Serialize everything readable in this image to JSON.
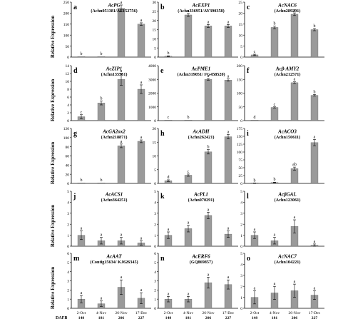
{
  "figure": {
    "y_axis_label": "Relative Expression",
    "x_categories": [
      "2-Oct",
      "4-Nov",
      "26-Nov",
      "17-Dec"
    ],
    "dafb_label": "DAFB",
    "dafb_values": [
      "148",
      "181",
      "206",
      "227"
    ]
  },
  "colors": {
    "bar": "#9a9a9a",
    "axis": "#000000",
    "text": "#000000"
  },
  "chart_data": [
    {
      "type": "bar",
      "letter": "a",
      "gene": "AcPG",
      "subtitle": "(Achn051381/AF152756)",
      "categories": [
        "2-Oct",
        "4-Nov",
        "26-Nov",
        "17-Dec"
      ],
      "values": [
        0,
        0,
        222,
        150
      ],
      "errors": [
        0,
        0,
        15,
        6
      ],
      "sig": [
        "b",
        "b",
        "a",
        "a"
      ],
      "ylim": [
        0,
        250
      ],
      "ticks": [
        0,
        50,
        100,
        150,
        200,
        250
      ]
    },
    {
      "type": "bar",
      "letter": "b",
      "gene": "AcEXP1",
      "subtitle": "(Achn336951/AY390358)",
      "categories": [
        "2-Oct",
        "4-Nov",
        "26-Nov",
        "17-Dec"
      ],
      "values": [
        0.5,
        23,
        17,
        17
      ],
      "errors": [
        0.2,
        0.8,
        0.8,
        0.8
      ],
      "sig": [
        "b",
        "a",
        "a",
        "a"
      ],
      "ylim": [
        0,
        30
      ],
      "ticks": [
        0,
        5,
        10,
        15,
        20,
        25,
        30
      ]
    },
    {
      "type": "bar",
      "letter": "c",
      "gene": "AcNAC6",
      "subtitle": "(Achn289291)",
      "categories": [
        "2-Oct",
        "4-Nov",
        "26-Nov",
        "17-Dec"
      ],
      "values": [
        1,
        13.5,
        19.5,
        12.5
      ],
      "errors": [
        0.3,
        0.6,
        0.6,
        0.5
      ],
      "sig": [
        "c",
        "b",
        "a",
        "b"
      ],
      "ylim": [
        0,
        25
      ],
      "ticks": [
        0,
        5,
        10,
        15,
        20,
        25
      ]
    },
    {
      "type": "bar",
      "letter": "d",
      "gene": "AcZIP1",
      "subtitle": "(Achn135561)",
      "categories": [
        "2-Oct",
        "4-Nov",
        "26-Nov",
        "17-Dec"
      ],
      "values": [
        1,
        4.5,
        10.5,
        8
      ],
      "errors": [
        0.5,
        0.5,
        1.5,
        1.1
      ],
      "sig": [
        "c",
        "b",
        "a",
        "a"
      ],
      "ylim": [
        0,
        14
      ],
      "ticks": [
        0,
        2,
        4,
        6,
        8,
        10,
        12,
        14
      ]
    },
    {
      "type": "bar",
      "letter": "e",
      "gene": "AcPME1",
      "subtitle": "(Achn319051/ FG458520)",
      "categories": [
        "2-Oct",
        "4-Nov",
        "26-Nov",
        "17-Dec"
      ],
      "values": [
        0,
        0,
        3000,
        2950
      ],
      "errors": [
        0,
        0,
        60,
        80
      ],
      "sig": [
        "c",
        "b",
        "a",
        "a"
      ],
      "ylim": [
        0,
        4000
      ],
      "ticks": [
        0,
        1000,
        2000,
        3000,
        4000
      ]
    },
    {
      "type": "bar",
      "letter": "f",
      "gene": "Acβ-AMY2",
      "subtitle": "(Achn212571)",
      "categories": [
        "2-Oct",
        "4-Nov",
        "26-Nov",
        "17-Dec"
      ],
      "values": [
        0,
        48,
        138,
        92
      ],
      "errors": [
        0,
        2,
        3,
        3
      ],
      "sig": [
        "d",
        "c",
        "a",
        "b"
      ],
      "ylim": [
        0,
        200
      ],
      "ticks": [
        0,
        50,
        100,
        150,
        200
      ]
    },
    {
      "type": "bar",
      "letter": "g",
      "gene": "AcGA2ox2",
      "subtitle": "(Achn218871)",
      "categories": [
        "2-Oct",
        "4-Nov",
        "26-Nov",
        "17-Dec"
      ],
      "values": [
        0,
        0,
        82,
        92
      ],
      "errors": [
        0,
        0,
        4,
        3
      ],
      "sig": [
        "b",
        "b",
        "a",
        "a"
      ],
      "ylim": [
        0,
        120
      ],
      "ticks": [
        0,
        20,
        40,
        60,
        80,
        100,
        120
      ]
    },
    {
      "type": "bar",
      "letter": "h",
      "gene": "AcADH",
      "subtitle": "(Achn262421)",
      "categories": [
        "2-Oct",
        "4-Nov",
        "26-Nov",
        "17-Dec"
      ],
      "values": [
        1,
        3,
        11.5,
        17
      ],
      "errors": [
        0.3,
        0.4,
        0.8,
        0.8
      ],
      "sig": [
        "d",
        "c",
        "b",
        "a"
      ],
      "ylim": [
        0,
        20
      ],
      "ticks": [
        0,
        5,
        10,
        15,
        20
      ]
    },
    {
      "type": "bar",
      "letter": "i",
      "gene": "AcACO3",
      "subtitle": "(Achn150611)",
      "categories": [
        "2-Oct",
        "4-Nov",
        "26-Nov",
        "17-Dec"
      ],
      "values": [
        1,
        3,
        47,
        130
      ],
      "errors": [
        0.5,
        1,
        5,
        10
      ],
      "sig": [
        "b",
        "b",
        "ab",
        "a"
      ],
      "ylim": [
        0,
        175
      ],
      "ticks": [
        0,
        25,
        50,
        75,
        100,
        125,
        150,
        175
      ]
    },
    {
      "type": "bar",
      "letter": "j",
      "gene": "AcACS1",
      "subtitle": "(Achn364251)",
      "categories": [
        "2-Oct",
        "4-Nov",
        "26-Nov",
        "17-Dec"
      ],
      "values": [
        1,
        0.5,
        0.5,
        0.3
      ],
      "errors": [
        0.4,
        0.3,
        0.3,
        0.2
      ],
      "sig": [
        "a",
        "a",
        "a",
        "a"
      ],
      "ylim": [
        0,
        5
      ],
      "ticks": [
        0,
        1,
        2,
        3,
        4,
        5
      ]
    },
    {
      "type": "bar",
      "letter": "k",
      "gene": "AcPL1",
      "subtitle": "(Achn070291)",
      "categories": [
        "2-Oct",
        "4-Nov",
        "26-Nov",
        "17-Dec"
      ],
      "values": [
        1,
        1.6,
        2.8,
        1.1
      ],
      "errors": [
        0.3,
        0.3,
        0.3,
        0.3
      ],
      "sig": [
        "a",
        "a",
        "a",
        "a"
      ],
      "ylim": [
        0,
        5
      ],
      "ticks": [
        0,
        1,
        2,
        3,
        4,
        5
      ]
    },
    {
      "type": "bar",
      "letter": "l",
      "gene": "AcβGAL",
      "subtitle": "(Achn123061)",
      "categories": [
        "2-Oct",
        "4-Nov",
        "26-Nov",
        "17-Dec"
      ],
      "values": [
        1,
        0.5,
        1.8,
        0.1
      ],
      "errors": [
        0.3,
        0.3,
        0.6,
        0.1
      ],
      "sig": [
        "a",
        "a",
        "a",
        "a"
      ],
      "ylim": [
        0,
        5
      ],
      "ticks": [
        0,
        1,
        2,
        3,
        4,
        5
      ]
    },
    {
      "type": "bar",
      "letter": "m",
      "gene": "AcAAT",
      "subtitle": "(Contig15634/ KJ626345)",
      "categories": [
        "2-Oct",
        "4-Nov",
        "26-Nov",
        "17-Dec"
      ],
      "values": [
        1,
        0.5,
        2.3,
        1.1
      ],
      "errors": [
        0.4,
        0.3,
        0.8,
        0.6
      ],
      "sig": [
        "a",
        "a",
        "a",
        "a"
      ],
      "ylim": [
        0,
        6
      ],
      "ticks": [
        0,
        1,
        2,
        3,
        4,
        5,
        6
      ]
    },
    {
      "type": "bar",
      "letter": "n",
      "gene": "AcERF6",
      "subtitle": "(GQ869857)",
      "categories": [
        "2-Oct",
        "4-Nov",
        "26-Nov",
        "17-Dec"
      ],
      "values": [
        1,
        1,
        2.8,
        2.6
      ],
      "errors": [
        0.3,
        0.3,
        0.6,
        0.5
      ],
      "sig": [
        "a",
        "a",
        "a",
        "a"
      ],
      "ylim": [
        0,
        6
      ],
      "ticks": [
        0,
        1,
        2,
        3,
        4,
        5,
        6
      ]
    },
    {
      "type": "bar",
      "letter": "o",
      "gene": "AcNAC7",
      "subtitle": "(Achn104221)",
      "categories": [
        "2-Oct",
        "4-Nov",
        "26-Nov",
        "17-Dec"
      ],
      "values": [
        1,
        1.4,
        1.6,
        1.2
      ],
      "errors": [
        0.6,
        0.6,
        0.6,
        0.4
      ],
      "sig": [
        "a",
        "a",
        "a",
        "a"
      ],
      "ylim": [
        0,
        5
      ],
      "ticks": [
        0,
        1,
        2,
        3,
        4,
        5
      ]
    }
  ]
}
